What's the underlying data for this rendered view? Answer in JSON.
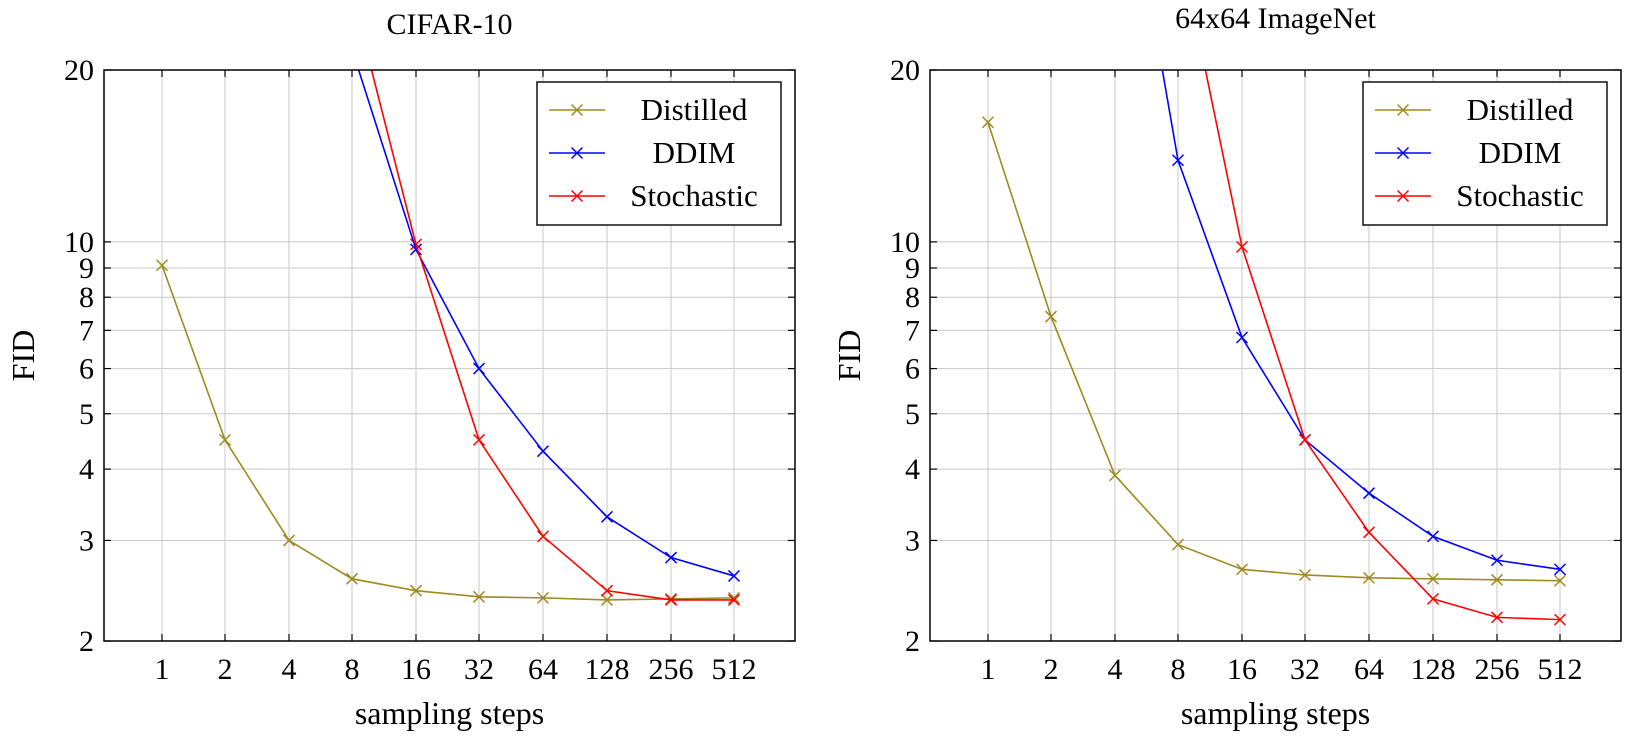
{
  "colors": {
    "Distilled": "#9e8a1e",
    "DDIM": "#0000ff",
    "Stochastic": "#ff0000"
  },
  "chart_data": [
    {
      "type": "line",
      "title": "CIFAR-10",
      "xlabel": "sampling steps",
      "ylabel": "FID",
      "y_scale": "log",
      "ylim": [
        2,
        20
      ],
      "x_ticks": [
        "1",
        "2",
        "4",
        "8",
        "16",
        "32",
        "64",
        "128",
        "256",
        "512"
      ],
      "y_ticks": [
        "2",
        "3",
        "4",
        "5",
        "6",
        "7",
        "8",
        "9",
        "10",
        "20"
      ],
      "legend_position": "top-right",
      "grid": true,
      "series": [
        {
          "name": "Distilled",
          "x": [
            1,
            2,
            4,
            8,
            16,
            32,
            64,
            128,
            256,
            512
          ],
          "y": [
            9.1,
            4.5,
            3.0,
            2.57,
            2.45,
            2.39,
            2.38,
            2.36,
            2.37,
            2.38
          ]
        },
        {
          "name": "DDIM",
          "x": [
            16,
            32,
            64,
            128,
            256,
            512
          ],
          "y": [
            9.7,
            6.0,
            4.3,
            3.3,
            2.8,
            2.6
          ]
        },
        {
          "name": "Stochastic",
          "x": [
            16,
            32,
            64,
            128,
            256,
            512
          ],
          "y": [
            9.9,
            4.5,
            3.05,
            2.45,
            2.36,
            2.36
          ]
        }
      ]
    },
    {
      "type": "line",
      "title": "64x64 ImageNet",
      "xlabel": "sampling steps",
      "ylabel": "FID",
      "y_scale": "log",
      "ylim": [
        2,
        20
      ],
      "x_ticks": [
        "1",
        "2",
        "4",
        "8",
        "16",
        "32",
        "64",
        "128",
        "256",
        "512"
      ],
      "y_ticks": [
        "2",
        "3",
        "4",
        "5",
        "6",
        "7",
        "8",
        "9",
        "10",
        "20"
      ],
      "legend_position": "top-right",
      "grid": true,
      "series": [
        {
          "name": "Distilled",
          "x": [
            1,
            2,
            4,
            8,
            16,
            32,
            64,
            128,
            256,
            512
          ],
          "y": [
            16.2,
            7.4,
            3.9,
            2.95,
            2.67,
            2.61,
            2.58,
            2.57,
            2.56,
            2.55
          ]
        },
        {
          "name": "DDIM",
          "x": [
            8,
            16,
            32,
            64,
            128,
            256,
            512
          ],
          "y": [
            13.9,
            6.8,
            4.5,
            3.63,
            3.05,
            2.77,
            2.67
          ]
        },
        {
          "name": "Stochastic",
          "x": [
            16,
            32,
            64,
            128,
            256,
            512
          ],
          "y": [
            9.8,
            4.5,
            3.1,
            2.37,
            2.2,
            2.18
          ]
        }
      ]
    }
  ]
}
